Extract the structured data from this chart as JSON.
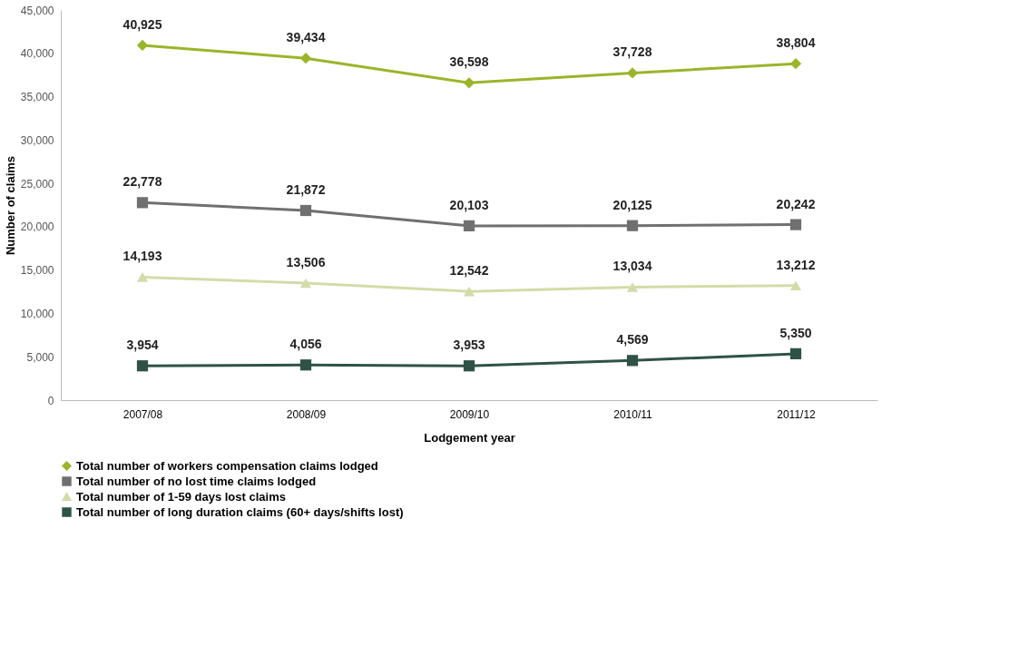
{
  "chart_data": {
    "type": "line",
    "xlabel": "Lodgement year",
    "ylabel": "Number of claims",
    "categories": [
      "2007/08",
      "2008/09",
      "2009/10",
      "2010/11",
      "2011/12"
    ],
    "series": [
      {
        "name": "Total number of workers compensation claims lodged",
        "color": "#9ab52a",
        "marker": "diamond",
        "values": [
          40925,
          39434,
          36598,
          37728,
          38804
        ],
        "value_labels": [
          "40,925",
          "39,434",
          "36,598",
          "37,728",
          "38,804"
        ]
      },
      {
        "name": "Total number of no lost time claims lodged",
        "color": "#707070",
        "marker": "square",
        "values": [
          22778,
          21872,
          20103,
          20125,
          20242
        ],
        "value_labels": [
          "22,778",
          "21,872",
          "20,103",
          "20,125",
          "20,242"
        ]
      },
      {
        "name": "Total number of 1-59 days lost claims",
        "color": "#d4dba8",
        "marker": "triangle",
        "values": [
          14193,
          13506,
          12542,
          13034,
          13212
        ],
        "value_labels": [
          "14,193",
          "13,506",
          "12,542",
          "13,034",
          "13,212"
        ]
      },
      {
        "name": "Total number of long duration claims (60+ days/shifts lost)",
        "color": "#2f5247",
        "marker": "square",
        "values": [
          3954,
          4056,
          3953,
          4569,
          5350
        ],
        "value_labels": [
          "3,954",
          "4,056",
          "3,953",
          "4,569",
          "5,350"
        ]
      }
    ],
    "ylim": [
      0,
      45000
    ],
    "yticks": [
      0,
      {
        "value": 5000,
        "label": "5,000"
      },
      {
        "value": 10000,
        "label": "10,000"
      },
      {
        "value": 15000,
        "label": "15,000"
      },
      {
        "value": 20000,
        "label": "20,000"
      },
      {
        "value": 25000,
        "label": "25,000"
      },
      {
        "value": 30000,
        "label": "30,000"
      },
      {
        "value": 35000,
        "label": "35,000"
      },
      {
        "value": 40000,
        "label": "40,000"
      },
      {
        "value": 45000,
        "label": "45,000"
      }
    ],
    "grid": false,
    "legend": "bottom",
    "line_style": "solid"
  }
}
